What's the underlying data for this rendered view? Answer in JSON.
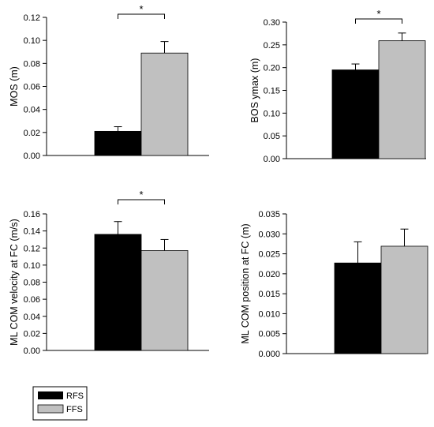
{
  "colors": {
    "RFS": "#000000",
    "FFS": "#c0c0c0",
    "axis": "#000000"
  },
  "legend": [
    {
      "label": "RFS",
      "color": "#000000"
    },
    {
      "label": "FFS",
      "color": "#c0c0c0"
    }
  ],
  "chart_data": [
    {
      "type": "bar",
      "ylabel": "MOS (m)",
      "ylim": [
        0,
        0.12
      ],
      "yticks": [
        "0.00",
        "0.02",
        "0.04",
        "0.06",
        "0.08",
        "0.10",
        "0.12"
      ],
      "series": [
        {
          "name": "RFS",
          "value": 0.021,
          "error": 0.004
        },
        {
          "name": "FFS",
          "value": 0.089,
          "error": 0.01
        }
      ],
      "significance": "*"
    },
    {
      "type": "bar",
      "ylabel": "BOS ymax (m)",
      "ylim": [
        0,
        0.3
      ],
      "yticks": [
        "0.00",
        "0.05",
        "0.10",
        "0.15",
        "0.20",
        "0.25",
        "0.30"
      ],
      "series": [
        {
          "name": "RFS",
          "value": 0.195,
          "error": 0.013
        },
        {
          "name": "FFS",
          "value": 0.259,
          "error": 0.017
        }
      ],
      "significance": "*"
    },
    {
      "type": "bar",
      "ylabel": "ML COM velocity at FC (m/s)",
      "ylim": [
        0,
        0.16
      ],
      "yticks": [
        "0.00",
        "0.02",
        "0.04",
        "0.06",
        "0.08",
        "0.10",
        "0.12",
        "0.14",
        "0.16"
      ],
      "series": [
        {
          "name": "RFS",
          "value": 0.136,
          "error": 0.015
        },
        {
          "name": "FFS",
          "value": 0.117,
          "error": 0.013
        }
      ],
      "significance": "*"
    },
    {
      "type": "bar",
      "ylabel": "ML COM position at FC (m)",
      "ylim": [
        0,
        0.035
      ],
      "yticks": [
        "0.000",
        "0.005",
        "0.010",
        "0.015",
        "0.020",
        "0.025",
        "0.030",
        "0.035"
      ],
      "series": [
        {
          "name": "RFS",
          "value": 0.0227,
          "error": 0.0053
        },
        {
          "name": "FFS",
          "value": 0.0269,
          "error": 0.0043
        }
      ],
      "significance": ""
    }
  ]
}
